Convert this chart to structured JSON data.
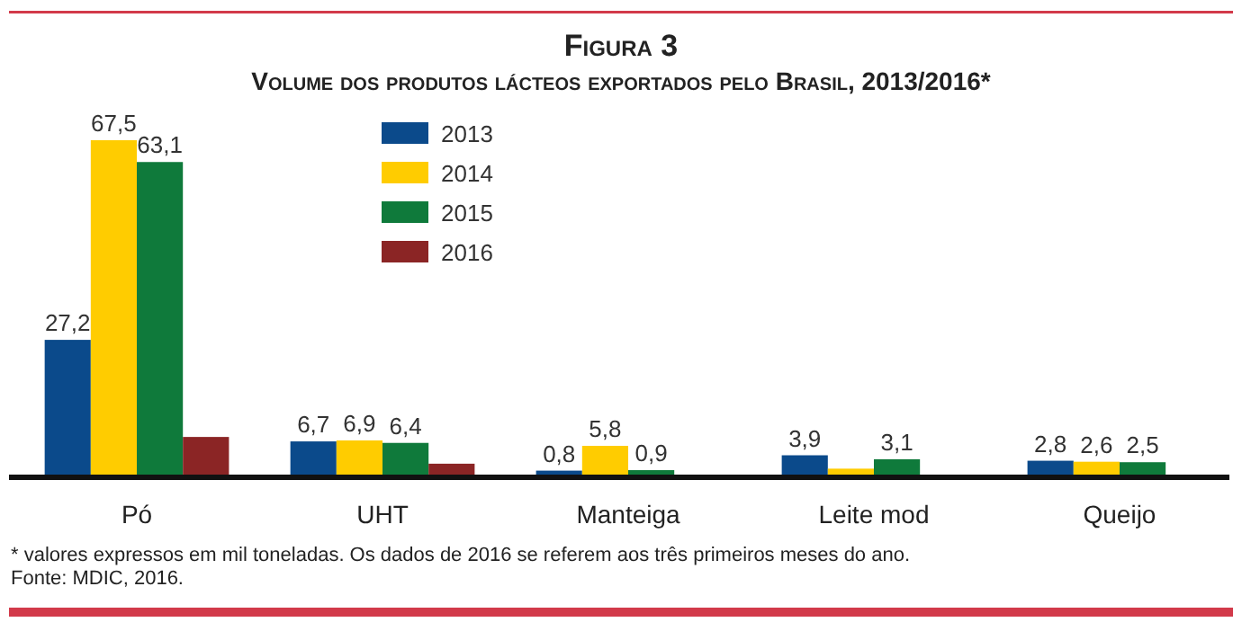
{
  "chart_data": {
    "type": "bar",
    "title": "Figura 3",
    "subtitle": "Volume dos produtos lácteos exportados pelo Brasil, 2013/2016*",
    "categories": [
      "Pó",
      "UHT",
      "Manteiga",
      "Leite mod",
      "Queijo"
    ],
    "series": [
      {
        "name": "2013",
        "color": "#0b4a8b",
        "values": [
          27.2,
          6.7,
          0.8,
          3.9,
          2.8
        ],
        "value_labels": [
          "27,2",
          "6,7",
          "0,8",
          "3,9",
          "2,8"
        ]
      },
      {
        "name": "2014",
        "color": "#ffcc00",
        "values": [
          67.5,
          6.9,
          5.8,
          1.2,
          2.6
        ],
        "value_labels": [
          "67,5",
          "6,9",
          "5,8",
          null,
          "2,6"
        ]
      },
      {
        "name": "2015",
        "color": "#0f7a3b",
        "values": [
          63.1,
          6.4,
          0.9,
          3.1,
          2.5
        ],
        "value_labels": [
          "63,1",
          "6,4",
          "0,9",
          "3,1",
          "2,5"
        ]
      },
      {
        "name": "2016",
        "color": "#8b2525",
        "values": [
          7.6,
          2.2,
          null,
          null,
          null
        ],
        "value_labels": [
          null,
          null,
          null,
          null,
          null
        ]
      }
    ],
    "legend": "top left",
    "annotations": [
      "* valores expressos em mil toneladas. Os dados de 2016 se referem aos três primeiros  meses do ano.",
      "Fonte: MDIC, 2016."
    ]
  }
}
